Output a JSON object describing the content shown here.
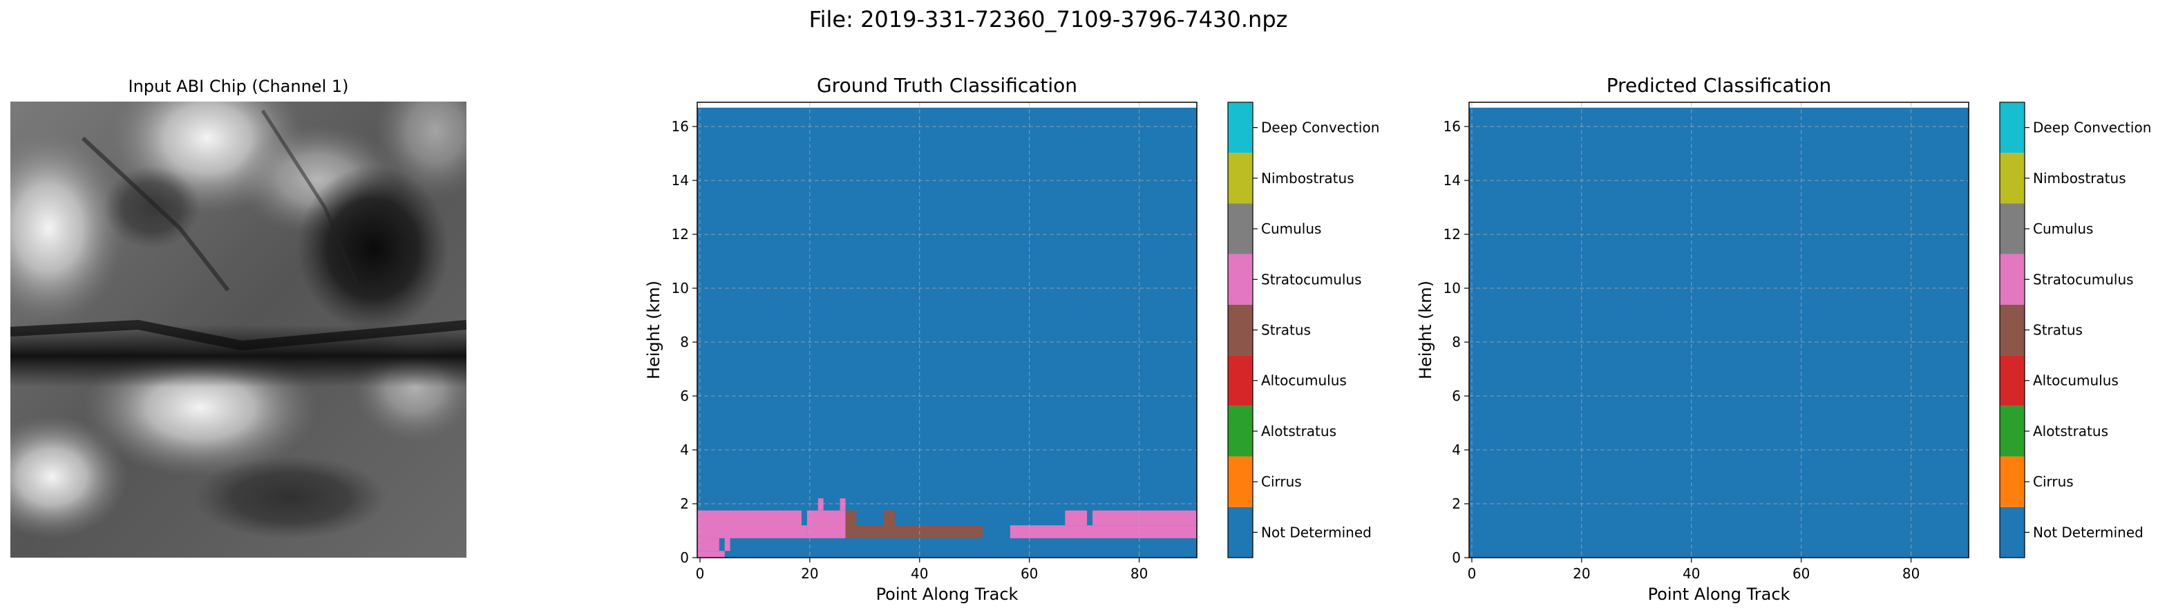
{
  "figure_title": "File: 2019-331-72360_7109-3796-7430.npz",
  "class_colors": {
    "Not Determined": "#1f77b4",
    "Cirrus": "#ff7f0e",
    "Alotstratus": "#2ca02c",
    "Altocumulus": "#d62728",
    "Stratus": "#8c564b",
    "Stratocumulus": "#e377c2",
    "Cumulus": "#7f7f7f",
    "Nimbostratus": "#bcbd22",
    "Deep Convection": "#17becf"
  },
  "chart_data": [
    {
      "type": "image",
      "title": "Input ABI Chip (Channel 1)",
      "colormap": "gray",
      "axes": "off"
    },
    {
      "type": "heatmap",
      "title": "Ground Truth Classification",
      "xlabel": "Point Along Track",
      "ylabel": "Height (km)",
      "xlim": [
        -0.5,
        90.5
      ],
      "ylim": [
        0,
        16.9
      ],
      "xticks": [
        "0",
        "20",
        "40",
        "60",
        "80"
      ],
      "yticks": [
        "0",
        "2",
        "4",
        "6",
        "8",
        "10",
        "12",
        "14",
        "16"
      ],
      "grid": true,
      "background_class": "Not Determined",
      "background_top_km": 16.7,
      "regions": [
        {
          "class": "Stratocumulus",
          "x": [
            -0.5,
            18.5
          ],
          "y": [
            0.72,
            1.75
          ]
        },
        {
          "class": "Stratocumulus",
          "x": [
            18.5,
            19.5
          ],
          "y": [
            0.72,
            1.2
          ]
        },
        {
          "class": "Stratocumulus",
          "x": [
            19.5,
            26.5
          ],
          "y": [
            0.72,
            1.75
          ]
        },
        {
          "class": "Stratocumulus",
          "x": [
            21.5,
            22.5
          ],
          "y": [
            1.75,
            2.2
          ]
        },
        {
          "class": "Stratocumulus",
          "x": [
            25.5,
            26.5
          ],
          "y": [
            1.75,
            2.2
          ]
        },
        {
          "class": "Stratocumulus",
          "x": [
            -0.5,
            3.5
          ],
          "y": [
            0.25,
            0.72
          ]
        },
        {
          "class": "Stratocumulus",
          "x": [
            4.5,
            5.5
          ],
          "y": [
            0.25,
            0.72
          ]
        },
        {
          "class": "Stratocumulus",
          "x": [
            -0.5,
            4.5
          ],
          "y": [
            0.0,
            0.25
          ]
        },
        {
          "class": "Stratus",
          "x": [
            26.5,
            51.5
          ],
          "y": [
            0.72,
            1.2
          ]
        },
        {
          "class": "Stratus",
          "x": [
            26.5,
            28.5
          ],
          "y": [
            1.2,
            1.75
          ]
        },
        {
          "class": "Stratus",
          "x": [
            33.5,
            35.5
          ],
          "y": [
            1.2,
            1.75
          ]
        },
        {
          "class": "Stratocumulus",
          "x": [
            56.5,
            90.5
          ],
          "y": [
            0.72,
            1.2
          ]
        },
        {
          "class": "Stratocumulus",
          "x": [
            66.5,
            70.5
          ],
          "y": [
            1.2,
            1.75
          ]
        },
        {
          "class": "Stratocumulus",
          "x": [
            71.5,
            90.5
          ],
          "y": [
            1.2,
            1.75
          ]
        }
      ],
      "colorbar": {
        "labels": [
          "Not Determined",
          "Cirrus",
          "Alotstratus",
          "Altocumulus",
          "Stratus",
          "Stratocumulus",
          "Cumulus",
          "Nimbostratus",
          "Deep Convection"
        ]
      }
    },
    {
      "type": "heatmap",
      "title": "Predicted Classification",
      "xlabel": "Point Along Track",
      "ylabel": "Height (km)",
      "xlim": [
        -0.5,
        90.5
      ],
      "ylim": [
        0,
        16.9
      ],
      "xticks": [
        "0",
        "20",
        "40",
        "60",
        "80"
      ],
      "yticks": [
        "0",
        "2",
        "4",
        "6",
        "8",
        "10",
        "12",
        "14",
        "16"
      ],
      "grid": true,
      "background_class": "Not Determined",
      "background_top_km": 16.7,
      "regions": [],
      "colorbar": {
        "labels": [
          "Not Determined",
          "Cirrus",
          "Alotstratus",
          "Altocumulus",
          "Stratus",
          "Stratocumulus",
          "Cumulus",
          "Nimbostratus",
          "Deep Convection"
        ]
      }
    }
  ]
}
